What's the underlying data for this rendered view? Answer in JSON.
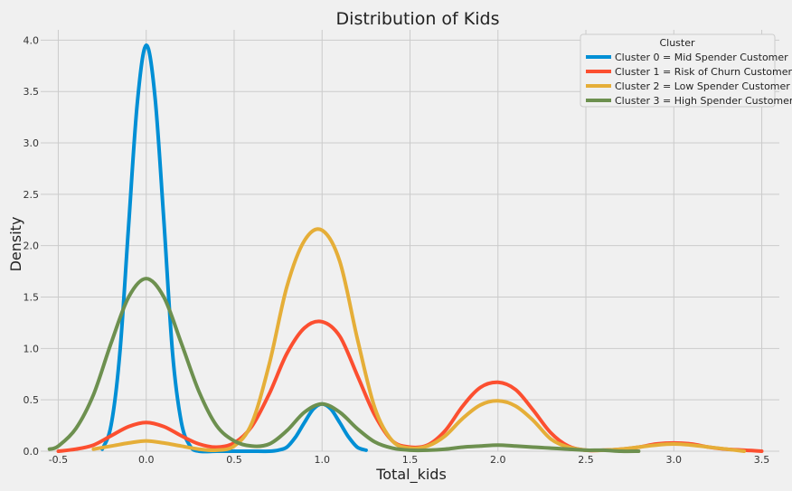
{
  "chart_data": {
    "type": "line",
    "title": "Distribution of Kids",
    "xlabel": "Total_kids",
    "ylabel": "Density",
    "xlim": [
      -0.6,
      3.6
    ],
    "ylim": [
      0,
      4.1
    ],
    "xticks": [
      -0.5,
      0.0,
      0.5,
      1.0,
      1.5,
      2.0,
      2.5,
      3.0,
      3.5
    ],
    "xtick_labels": [
      "-0.5",
      "0.0",
      "0.5",
      "1.0",
      "1.5",
      "2.0",
      "2.5",
      "3.0",
      "3.5"
    ],
    "yticks": [
      0.0,
      0.5,
      1.0,
      1.5,
      2.0,
      2.5,
      3.0,
      3.5,
      4.0
    ],
    "ytick_labels": [
      "0.0",
      "0.5",
      "1.0",
      "1.5",
      "2.0",
      "2.5",
      "3.0",
      "3.5",
      "4.0"
    ],
    "grid": true,
    "legend_title": "Cluster",
    "legend_position": "top-right",
    "series": [
      {
        "name": "Cluster 0 = Mid Spender Customer",
        "color": "#008fd5",
        "x": [
          -0.25,
          -0.2,
          -0.15,
          -0.1,
          -0.05,
          0.0,
          0.05,
          0.1,
          0.15,
          0.2,
          0.25,
          0.3,
          0.4,
          0.5,
          0.6,
          0.7,
          0.75,
          0.8,
          0.85,
          0.9,
          0.95,
          1.0,
          1.05,
          1.1,
          1.15,
          1.2,
          1.25
        ],
        "y": [
          0.02,
          0.25,
          0.95,
          2.2,
          3.4,
          3.95,
          3.45,
          2.25,
          0.95,
          0.28,
          0.05,
          0.0,
          0.0,
          0.0,
          0.0,
          0.0,
          0.01,
          0.04,
          0.14,
          0.28,
          0.41,
          0.46,
          0.41,
          0.28,
          0.14,
          0.04,
          0.01
        ]
      },
      {
        "name": "Cluster 1 = Risk of Churn Customer",
        "color": "#fc4f30",
        "x": [
          -0.5,
          -0.4,
          -0.3,
          -0.2,
          -0.1,
          0.0,
          0.1,
          0.2,
          0.3,
          0.4,
          0.5,
          0.6,
          0.7,
          0.8,
          0.9,
          1.0,
          1.1,
          1.2,
          1.3,
          1.4,
          1.5,
          1.6,
          1.7,
          1.8,
          1.9,
          2.0,
          2.1,
          2.2,
          2.3,
          2.4,
          2.5,
          2.6,
          2.7,
          2.8,
          2.9,
          3.0,
          3.1,
          3.2,
          3.3,
          3.4,
          3.5
        ],
        "y": [
          0.0,
          0.02,
          0.06,
          0.15,
          0.24,
          0.28,
          0.24,
          0.15,
          0.07,
          0.04,
          0.08,
          0.24,
          0.56,
          0.95,
          1.2,
          1.26,
          1.12,
          0.74,
          0.35,
          0.1,
          0.04,
          0.06,
          0.2,
          0.44,
          0.62,
          0.67,
          0.6,
          0.4,
          0.18,
          0.05,
          0.01,
          0.01,
          0.02,
          0.04,
          0.07,
          0.08,
          0.07,
          0.04,
          0.02,
          0.01,
          0.0
        ]
      },
      {
        "name": "Cluster 2 = Low Spender Customer",
        "color": "#e5ae38",
        "x": [
          -0.3,
          -0.2,
          -0.1,
          0.0,
          0.1,
          0.2,
          0.3,
          0.4,
          0.5,
          0.6,
          0.7,
          0.8,
          0.9,
          1.0,
          1.1,
          1.2,
          1.3,
          1.4,
          1.5,
          1.6,
          1.7,
          1.8,
          1.9,
          2.0,
          2.1,
          2.2,
          2.3,
          2.4,
          2.5,
          2.6,
          2.7,
          2.8,
          2.9,
          3.0,
          3.1,
          3.2,
          3.3,
          3.4
        ],
        "y": [
          0.02,
          0.05,
          0.08,
          0.1,
          0.08,
          0.05,
          0.02,
          0.01,
          0.05,
          0.27,
          0.85,
          1.6,
          2.05,
          2.15,
          1.85,
          1.1,
          0.42,
          0.1,
          0.03,
          0.05,
          0.15,
          0.32,
          0.45,
          0.49,
          0.44,
          0.3,
          0.12,
          0.04,
          0.01,
          0.01,
          0.02,
          0.04,
          0.06,
          0.07,
          0.06,
          0.04,
          0.02,
          0.0
        ]
      },
      {
        "name": "Cluster 3 = High Spender Customer",
        "color": "#6d904f",
        "x": [
          -0.55,
          -0.5,
          -0.4,
          -0.3,
          -0.2,
          -0.1,
          0.0,
          0.1,
          0.2,
          0.3,
          0.4,
          0.5,
          0.6,
          0.7,
          0.8,
          0.9,
          1.0,
          1.1,
          1.2,
          1.3,
          1.4,
          1.5,
          1.6,
          1.7,
          1.8,
          1.9,
          2.0,
          2.1,
          2.2,
          2.3,
          2.4,
          2.5,
          2.6,
          2.7,
          2.8
        ],
        "y": [
          0.02,
          0.05,
          0.22,
          0.55,
          1.05,
          1.5,
          1.68,
          1.5,
          1.05,
          0.58,
          0.25,
          0.1,
          0.05,
          0.07,
          0.2,
          0.38,
          0.46,
          0.38,
          0.22,
          0.09,
          0.03,
          0.01,
          0.01,
          0.02,
          0.04,
          0.05,
          0.06,
          0.05,
          0.04,
          0.03,
          0.02,
          0.01,
          0.01,
          0.0,
          0.0
        ]
      }
    ]
  }
}
